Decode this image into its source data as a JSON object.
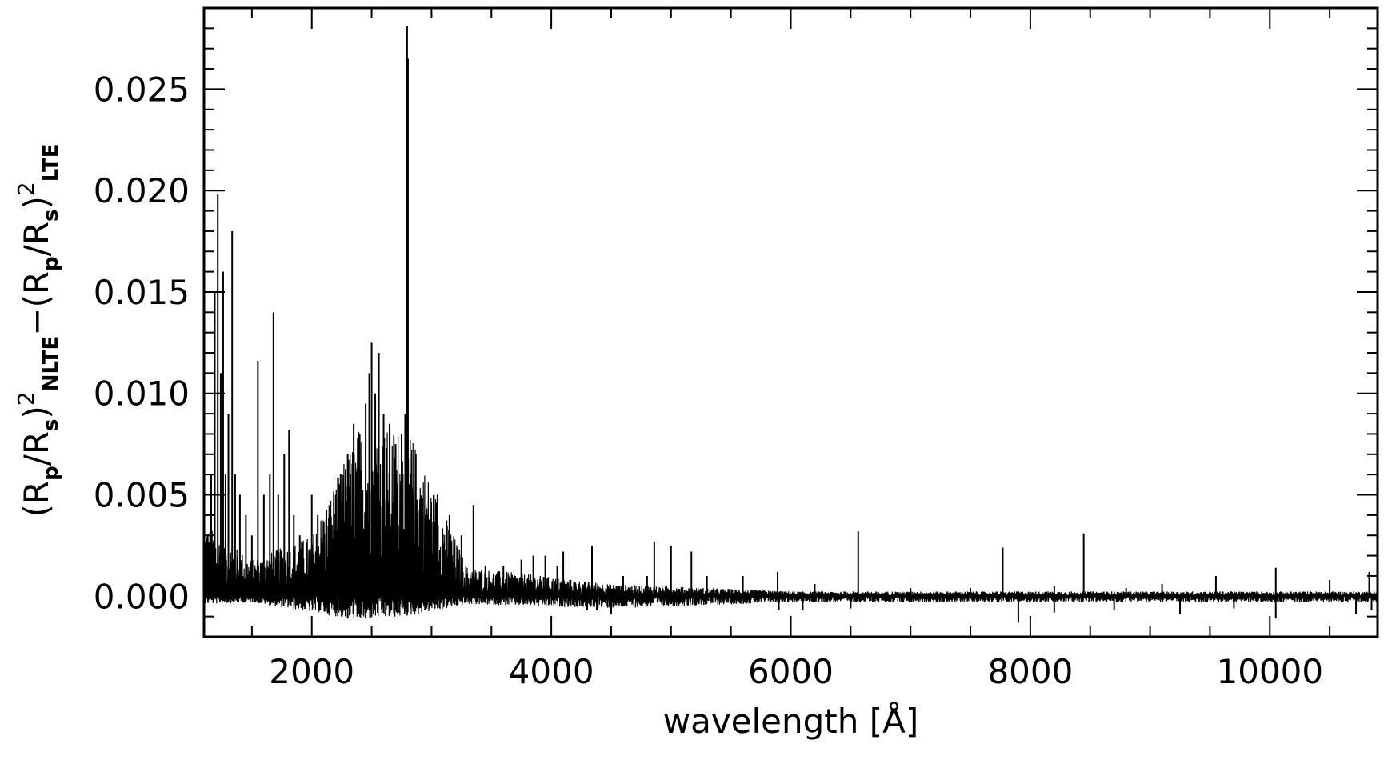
{
  "chart_data": {
    "type": "line",
    "title": "",
    "xlabel": "wavelength [Å]",
    "ylabel": {
      "parts": [
        {
          "t": "(R",
          "s": "n"
        },
        {
          "t": "p",
          "s": "sub"
        },
        {
          "t": "/R",
          "s": "n"
        },
        {
          "t": "s",
          "s": "sub"
        },
        {
          "t": ")",
          "s": "n"
        },
        {
          "t": "2",
          "s": "sup"
        },
        {
          "t": "NLTE",
          "s": "subb"
        },
        {
          "t": "−(R",
          "s": "n"
        },
        {
          "t": "p",
          "s": "sub"
        },
        {
          "t": "/R",
          "s": "n"
        },
        {
          "t": "s",
          "s": "sub"
        },
        {
          "t": ")",
          "s": "n"
        },
        {
          "t": "2",
          "s": "sup"
        },
        {
          "t": "LTE",
          "s": "subb"
        }
      ]
    },
    "xlim": [
      1100,
      10900
    ],
    "ylim": [
      -0.002,
      0.029
    ],
    "xticks": [
      {
        "value": 2000,
        "label": "2000"
      },
      {
        "value": 4000,
        "label": "4000"
      },
      {
        "value": 6000,
        "label": "6000"
      },
      {
        "value": 8000,
        "label": "8000"
      },
      {
        "value": 10000,
        "label": "10000"
      }
    ],
    "yticks": [
      {
        "value": 0.0,
        "label": "0.000"
      },
      {
        "value": 0.005,
        "label": "0.005"
      },
      {
        "value": 0.01,
        "label": "0.010"
      },
      {
        "value": 0.015,
        "label": "0.015"
      },
      {
        "value": 0.02,
        "label": "0.020"
      },
      {
        "value": 0.025,
        "label": "0.025"
      }
    ],
    "grid": false,
    "legend": "none",
    "series": [
      {
        "style": "spectrum-spikes",
        "color": "#000000",
        "baseline": 0.0,
        "envelope": [
          {
            "x": 1100,
            "pos": 0.003,
            "neg": -0.0004
          },
          {
            "x": 1500,
            "pos": 0.0015,
            "neg": -0.0003
          },
          {
            "x": 2000,
            "pos": 0.0025,
            "neg": -0.0008
          },
          {
            "x": 2400,
            "pos": 0.007,
            "neg": -0.0012
          },
          {
            "x": 2800,
            "pos": 0.007,
            "neg": -0.001
          },
          {
            "x": 3300,
            "pos": 0.0012,
            "neg": -0.0004
          },
          {
            "x": 4500,
            "pos": 0.0005,
            "neg": -0.0006
          },
          {
            "x": 6000,
            "pos": 0.0002,
            "neg": -0.0003
          },
          {
            "x": 10900,
            "pos": 0.0002,
            "neg": -0.0003
          }
        ],
        "peaks": [
          {
            "x": 1130,
            "y": 0.003
          },
          {
            "x": 1160,
            "y": 0.006
          },
          {
            "x": 1190,
            "y": 0.015
          },
          {
            "x": 1215,
            "y": 0.0198
          },
          {
            "x": 1240,
            "y": 0.011
          },
          {
            "x": 1260,
            "y": 0.016
          },
          {
            "x": 1280,
            "y": 0.006
          },
          {
            "x": 1304,
            "y": 0.009
          },
          {
            "x": 1335,
            "y": 0.018
          },
          {
            "x": 1360,
            "y": 0.006
          },
          {
            "x": 1400,
            "y": 0.005
          },
          {
            "x": 1450,
            "y": 0.004
          },
          {
            "x": 1500,
            "y": 0.003
          },
          {
            "x": 1550,
            "y": 0.0116
          },
          {
            "x": 1600,
            "y": 0.005
          },
          {
            "x": 1650,
            "y": 0.006
          },
          {
            "x": 1680,
            "y": 0.014
          },
          {
            "x": 1720,
            "y": 0.005
          },
          {
            "x": 1770,
            "y": 0.007
          },
          {
            "x": 1810,
            "y": 0.0082
          },
          {
            "x": 1850,
            "y": 0.004
          },
          {
            "x": 1900,
            "y": 0.003
          },
          {
            "x": 2000,
            "y": 0.005
          },
          {
            "x": 2050,
            "y": 0.004
          },
          {
            "x": 2100,
            "y": 0.003
          },
          {
            "x": 2150,
            "y": 0.004
          },
          {
            "x": 2200,
            "y": 0.005
          },
          {
            "x": 2250,
            "y": 0.006
          },
          {
            "x": 2300,
            "y": 0.007
          },
          {
            "x": 2350,
            "y": 0.0085
          },
          {
            "x": 2400,
            "y": 0.008
          },
          {
            "x": 2450,
            "y": 0.0095
          },
          {
            "x": 2480,
            "y": 0.011
          },
          {
            "x": 2500,
            "y": 0.0125
          },
          {
            "x": 2530,
            "y": 0.01
          },
          {
            "x": 2560,
            "y": 0.012
          },
          {
            "x": 2600,
            "y": 0.009
          },
          {
            "x": 2650,
            "y": 0.0085
          },
          {
            "x": 2700,
            "y": 0.0075
          },
          {
            "x": 2750,
            "y": 0.008
          },
          {
            "x": 2780,
            "y": 0.009
          },
          {
            "x": 2796,
            "y": 0.0281
          },
          {
            "x": 2803,
            "y": 0.0265
          },
          {
            "x": 2850,
            "y": 0.005
          },
          {
            "x": 2950,
            "y": 0.004
          },
          {
            "x": 3050,
            "y": 0.005
          },
          {
            "x": 3150,
            "y": 0.004
          },
          {
            "x": 3250,
            "y": 0.003
          },
          {
            "x": 3350,
            "y": 0.0045
          },
          {
            "x": 3450,
            "y": 0.0015
          },
          {
            "x": 3600,
            "y": 0.0015
          },
          {
            "x": 3750,
            "y": 0.0018
          },
          {
            "x": 3850,
            "y": 0.002
          },
          {
            "x": 3950,
            "y": 0.002
          },
          {
            "x": 4050,
            "y": 0.0015
          },
          {
            "x": 4100,
            "y": 0.0022
          },
          {
            "x": 4340,
            "y": 0.0025
          },
          {
            "x": 4600,
            "y": 0.001
          },
          {
            "x": 4800,
            "y": 0.001
          },
          {
            "x": 4860,
            "y": 0.0027
          },
          {
            "x": 5000,
            "y": 0.0025
          },
          {
            "x": 5170,
            "y": 0.0022
          },
          {
            "x": 5300,
            "y": 0.001
          },
          {
            "x": 5600,
            "y": 0.001
          },
          {
            "x": 5890,
            "y": 0.0012
          },
          {
            "x": 6200,
            "y": 0.0006
          },
          {
            "x": 6563,
            "y": 0.0032
          },
          {
            "x": 7000,
            "y": 0.0004
          },
          {
            "x": 7500,
            "y": 0.0004
          },
          {
            "x": 7770,
            "y": 0.0024
          },
          {
            "x": 8200,
            "y": 0.0005
          },
          {
            "x": 8446,
            "y": 0.0031
          },
          {
            "x": 8800,
            "y": 0.0004
          },
          {
            "x": 9100,
            "y": 0.0006
          },
          {
            "x": 9550,
            "y": 0.001
          },
          {
            "x": 10050,
            "y": 0.0014
          },
          {
            "x": 10500,
            "y": 0.0008
          },
          {
            "x": 10830,
            "y": 0.0012
          }
        ],
        "troughs": [
          {
            "x": 2250,
            "y": -0.001
          },
          {
            "x": 2300,
            "y": -0.0011
          },
          {
            "x": 2380,
            "y": -0.001
          },
          {
            "x": 2450,
            "y": -0.0011
          },
          {
            "x": 2550,
            "y": -0.0008
          },
          {
            "x": 4300,
            "y": -0.0007
          },
          {
            "x": 4380,
            "y": -0.0007
          },
          {
            "x": 4500,
            "y": -0.0009
          },
          {
            "x": 5900,
            "y": -0.0007
          },
          {
            "x": 6100,
            "y": -0.0007
          },
          {
            "x": 6500,
            "y": -0.0006
          },
          {
            "x": 7900,
            "y": -0.0013
          },
          {
            "x": 8200,
            "y": -0.0008
          },
          {
            "x": 8700,
            "y": -0.0007
          },
          {
            "x": 9250,
            "y": -0.0009
          },
          {
            "x": 9700,
            "y": -0.0006
          },
          {
            "x": 10050,
            "y": -0.0011
          },
          {
            "x": 10720,
            "y": -0.0009
          },
          {
            "x": 10850,
            "y": -0.0007
          }
        ]
      }
    ]
  }
}
